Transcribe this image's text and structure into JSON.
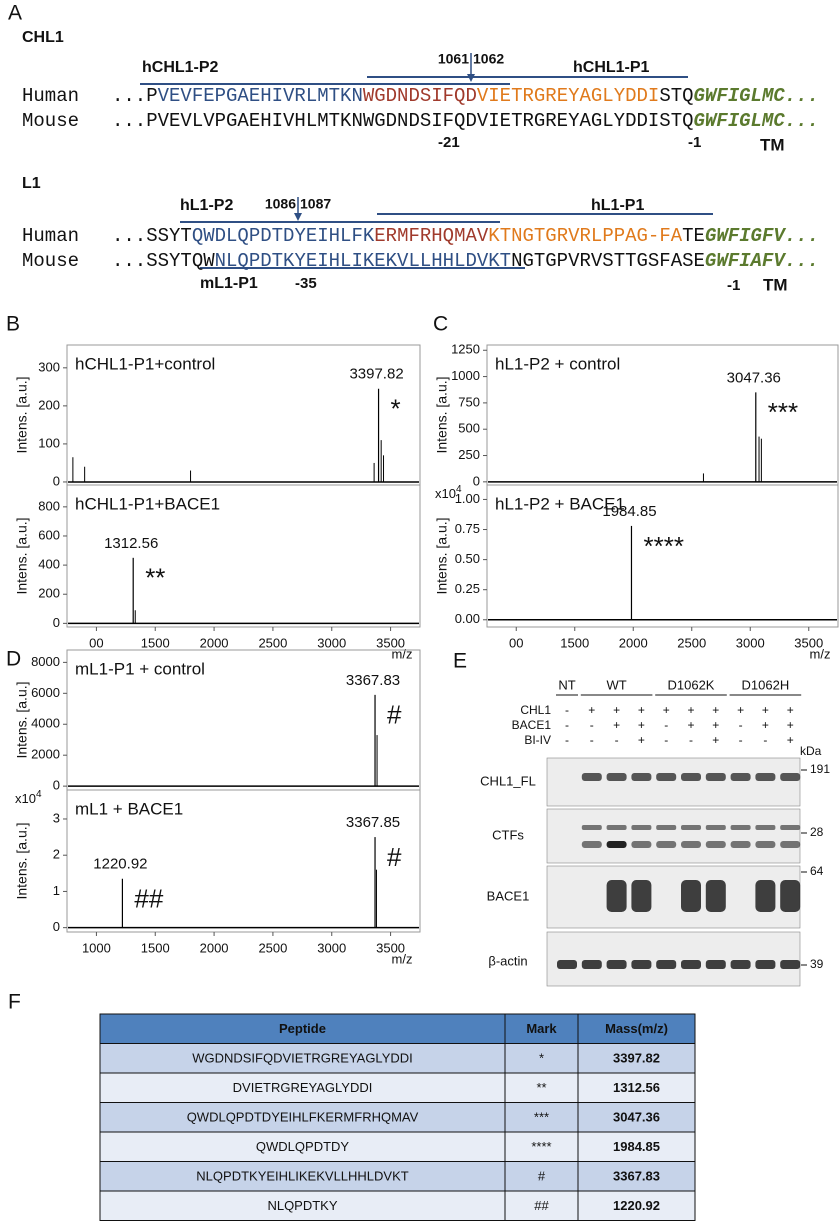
{
  "panel_letters": [
    "A",
    "B",
    "C",
    "D",
    "E",
    "F"
  ],
  "panel_a": {
    "blocks": [
      {
        "name": "CHL1",
        "probes": [
          "hCHL1-P2",
          "hCHL1-P1"
        ],
        "cleavage": [
          1061,
          1062
        ],
        "rows": [
          {
            "species": "Human",
            "segments": [
              {
                "text": "...P",
                "color": "#111111"
              },
              {
                "text": "VEVFEPGAEHIVRLMTKN",
                "color": "#2f4f84"
              },
              {
                "text": "WGDNDSIFQD",
                "color": "#a03a2c"
              },
              {
                "text": "VIETRGREYAGLYDDI",
                "color": "#e07a1c"
              },
              {
                "text": "STQ",
                "color": "#111111"
              },
              {
                "text": "GWFIGLMC...",
                "color": "#5b7a2e",
                "italic": true
              }
            ]
          },
          {
            "species": "Mouse",
            "segments": [
              {
                "text": "...PVEVLVPGAEHIVHLMTKNWGDNDSIFQDVIETRGREYAGLYDDISTQ",
                "color": "#111111"
              },
              {
                "text": "GWFIGLMC...",
                "color": "#5b7a2e",
                "italic": true
              }
            ]
          }
        ],
        "positions": [
          -21,
          -1
        ],
        "tm": "TM"
      },
      {
        "name": "L1",
        "probes": [
          "hL1-P2",
          "hL1-P1",
          "mL1-P1"
        ],
        "cleavage": [
          1086,
          1087
        ],
        "rows": [
          {
            "species": "Human",
            "segments": [
              {
                "text": "...SSYT",
                "color": "#111111"
              },
              {
                "text": "QWDLQPDTDYEIHLFK",
                "color": "#2f4f84"
              },
              {
                "text": "ERMFRHQMAV",
                "color": "#a03a2c"
              },
              {
                "text": "KTNGTGRVRLPPAG-FA",
                "color": "#e07a1c"
              },
              {
                "text": "TE",
                "color": "#111111"
              },
              {
                "text": "GWFIGFV...",
                "color": "#5b7a2e",
                "italic": true
              }
            ]
          },
          {
            "species": "Mouse",
            "segments": [
              {
                "text": "...SSYTQW",
                "color": "#111111"
              },
              {
                "text": "NLQPDTKYEIHLIKEKVLLHHLDVKT",
                "color": "#2f4f84"
              },
              {
                "text": "NGTGPVRVSTTGSFASE",
                "color": "#111111"
              },
              {
                "text": "GWFIAFV...",
                "color": "#5b7a2e",
                "italic": true
              }
            ]
          }
        ],
        "positions": [
          -35,
          -1
        ],
        "tm": "TM"
      }
    ]
  },
  "chart_data": [
    {
      "type": "spectrum",
      "label": "hCHL1-P1+control",
      "ylabel": "Intens. [a.u.]",
      "color": "#000000",
      "xlim": [
        750,
        3750
      ],
      "ylim": [
        -8,
        360
      ],
      "yticks": [
        0,
        100,
        200,
        300
      ],
      "x": [
        800,
        900,
        1800,
        3360,
        3420,
        3440
      ],
      "values": [
        65,
        40,
        30,
        50,
        110,
        70
      ],
      "peaks": [
        {
          "x": 3397.82,
          "y": 245,
          "mark": "*"
        }
      ]
    },
    {
      "type": "spectrum",
      "label": "hCHL1-P1+BACE1",
      "ylabel": "Intens. [a.u.]",
      "xlabel": "m/z",
      "color": "#000000",
      "xlim": [
        750,
        3750
      ],
      "ylim": [
        -25,
        950
      ],
      "yticks": [
        0,
        200,
        400,
        600,
        800
      ],
      "xticks": [
        {
          "value": 1000,
          "label": "00"
        },
        1500,
        2000,
        2500,
        3000,
        3500
      ],
      "x": [
        1330
      ],
      "values": [
        90
      ],
      "peaks": [
        {
          "x": 1312.56,
          "y": 450,
          "mark": "**"
        }
      ]
    },
    {
      "type": "spectrum",
      "label": "hL1-P2 + control",
      "ylabel": "Intens. [a.u.]",
      "color": "#000000",
      "xlim": [
        750,
        3750
      ],
      "ylim": [
        -30,
        1300
      ],
      "yticks": [
        0,
        250,
        500,
        750,
        1000,
        1250
      ],
      "x": [
        2600,
        3075,
        3095
      ],
      "values": [
        80,
        430,
        410
      ],
      "peaks": [
        {
          "x": 3047.36,
          "y": 850,
          "mark": "***"
        }
      ]
    },
    {
      "type": "spectrum",
      "label": "hL1-P2 + BACE1",
      "ylabel": "Intens. [a.u.]",
      "xlabel": "m/z",
      "color": "#000000",
      "scale_label": "x10",
      "scale_exponent": 4,
      "xlim": [
        750,
        3750
      ],
      "ylim": [
        -0.06,
        1.12
      ],
      "yticks": [
        {
          "value": 0,
          "label": "0.00"
        },
        {
          "value": 0.25,
          "label": "0.25"
        },
        {
          "value": 0.5,
          "label": "0.50"
        },
        {
          "value": 0.75,
          "label": "0.75"
        },
        {
          "value": 1,
          "label": "1.00"
        }
      ],
      "xticks": [
        {
          "value": 1000,
          "label": "00"
        },
        1500,
        2000,
        2500,
        3000,
        3500
      ],
      "x": [],
      "values": [],
      "peaks": [
        {
          "x": 1984.85,
          "y": 0.78,
          "mark": "****"
        }
      ]
    },
    {
      "type": "spectrum",
      "label": "mL1-P1 + control",
      "ylabel": "Intens. [a.u.]",
      "color": "#000000",
      "xlim": [
        750,
        3750
      ],
      "ylim": [
        -250,
        8800
      ],
      "yticks": [
        0,
        2000,
        4000,
        6000,
        8000
      ],
      "x": [
        3385
      ],
      "values": [
        3300
      ],
      "peaks": [
        {
          "x": 3367.83,
          "y": 5900,
          "mark": "#"
        }
      ]
    },
    {
      "type": "spectrum",
      "label": "mL1 + BACE1",
      "ylabel": "Intens. [a.u.]",
      "xlabel": "m/z",
      "color": "#000000",
      "scale_label": "x10",
      "scale_exponent": 4,
      "xlim": [
        750,
        3750
      ],
      "ylim": [
        -0.12,
        3.8
      ],
      "yticks": [
        0,
        1,
        2,
        3
      ],
      "xticks": [
        1000,
        1500,
        2000,
        2500,
        3000,
        3500
      ],
      "x": [
        3380
      ],
      "values": [
        1.6
      ],
      "peaks": [
        {
          "x": 1220.92,
          "y": 1.35,
          "mark": "##"
        },
        {
          "x": 3367.85,
          "y": 2.5,
          "mark": "#"
        }
      ]
    }
  ],
  "panel_e": {
    "groups": [
      "NT",
      "WT",
      "D1062K",
      "D1062H"
    ],
    "conditions": [
      {
        "name": "CHL1",
        "signs": [
          "-",
          "+",
          "+",
          "+",
          "+",
          "+",
          "+",
          "+",
          "+",
          "+"
        ]
      },
      {
        "name": "BACE1",
        "signs": [
          "-",
          "-",
          "+",
          "+",
          "-",
          "+",
          "+",
          "-",
          "+",
          "+"
        ]
      },
      {
        "name": "BI-IV",
        "signs": [
          "-",
          "-",
          "-",
          "+",
          "-",
          "-",
          "+",
          "-",
          "-",
          "+"
        ]
      }
    ],
    "kda_label": "kDa",
    "blots": [
      {
        "name": "CHL1_FL",
        "marker": 191
      },
      {
        "name": "CTFs",
        "marker": 28
      },
      {
        "name": "BACE1",
        "marker": 64
      },
      {
        "name": "β-actin",
        "marker": 39
      }
    ]
  },
  "table": {
    "header": [
      "Peptide",
      "Mark",
      "Mass(m/z)"
    ],
    "rows": [
      [
        "WGDNDSIFQDVIETRGREYAGLYDDI",
        "*",
        3397.82
      ],
      [
        "DVIETRGREYAGLYDDI",
        "**",
        1312.56
      ],
      [
        "QWDLQPDTDYEIHLFKERMFRHQMAV",
        "***",
        3047.36
      ],
      [
        "QWDLQPDTDY",
        "****",
        1984.85
      ],
      [
        "NLQPDTKYEIHLIKEKVLLHHLDVKT",
        "#",
        3367.83
      ],
      [
        "NLQPDTKY",
        "##",
        1220.92
      ]
    ]
  }
}
